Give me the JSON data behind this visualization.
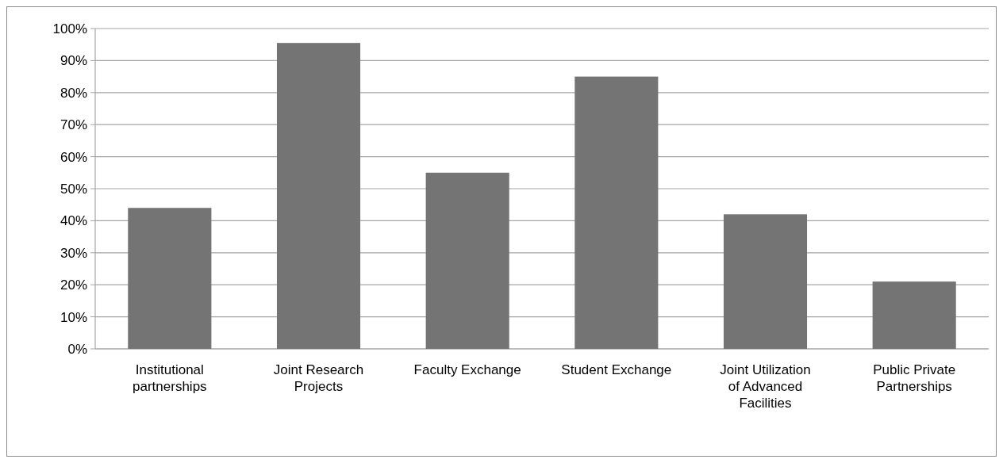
{
  "chart_data": {
    "type": "bar",
    "categories": [
      "Institutional partnerships",
      "Joint Research Projects",
      "Faculty Exchange",
      "Student Exchange",
      "Joint Utilization of Advanced Facilities",
      "Public Private Partnerships"
    ],
    "values": [
      44,
      95.5,
      55,
      85,
      42,
      21
    ],
    "color": "#747474",
    "ylim": [
      0,
      100
    ],
    "yticks": [
      {
        "value": 0,
        "label": "0%"
      },
      {
        "value": 10,
        "label": "10%"
      },
      {
        "value": 20,
        "label": "20%"
      },
      {
        "value": 30,
        "label": "30%"
      },
      {
        "value": 40,
        "label": "40%"
      },
      {
        "value": 50,
        "label": "50%"
      },
      {
        "value": 60,
        "label": "60%"
      },
      {
        "value": 70,
        "label": "70%"
      },
      {
        "value": 80,
        "label": "80%"
      },
      {
        "value": 90,
        "label": "90%"
      },
      {
        "value": 100,
        "label": "100%"
      }
    ],
    "grid": "y"
  }
}
